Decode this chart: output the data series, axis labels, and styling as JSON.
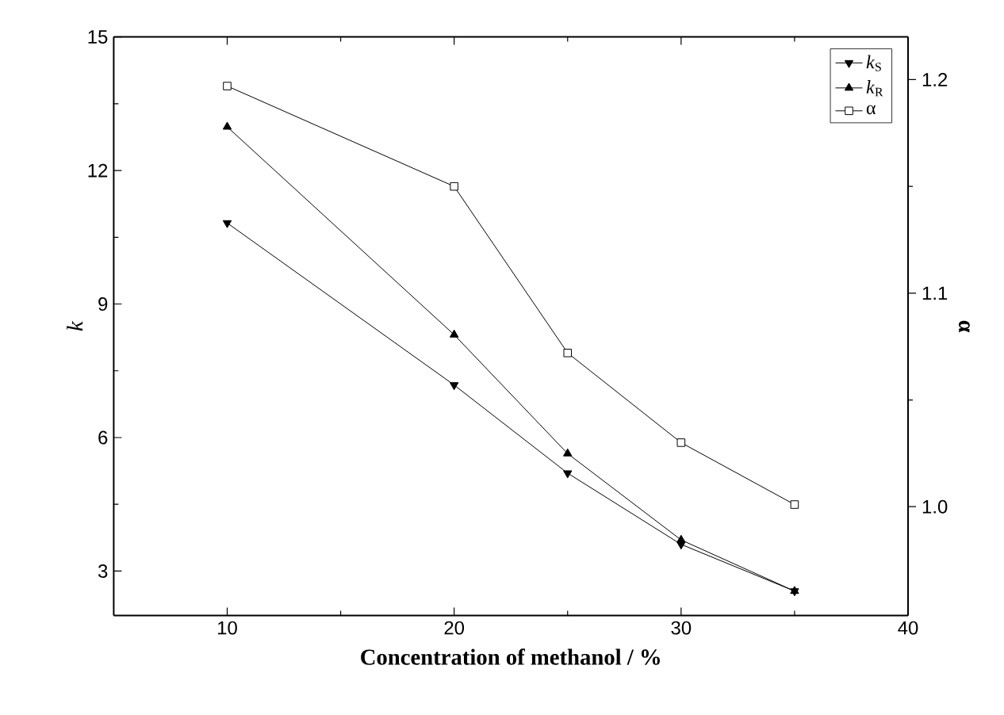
{
  "chart_data": {
    "type": "line",
    "xlabel": "Concentration of methanol / %",
    "ylabel": "k",
    "y2label": "α",
    "x": [
      10,
      20,
      25,
      30,
      35
    ],
    "series": [
      {
        "name": "*k*$_{S}$",
        "color": "#000000",
        "marker": "triangle-down",
        "values": [
          10.82,
          7.18,
          5.2,
          3.6,
          2.55
        ]
      },
      {
        "name": "*k*$_{R}$",
        "color": "#000000",
        "marker": "triangle",
        "values": [
          12.98,
          8.31,
          5.64,
          3.7,
          2.55
        ]
      },
      {
        "name": "α",
        "color": "#000000",
        "marker": "square",
        "axis": "y2",
        "values": [
          1.197,
          1.15,
          1.072,
          1.03,
          1.001
        ]
      }
    ],
    "xlim": [
      5,
      40
    ],
    "xticks": [
      10,
      20,
      30,
      40
    ],
    "ylim": [
      2,
      15
    ],
    "yticks": [
      3,
      6,
      9,
      12,
      15
    ],
    "y2lim": [
      0.949,
      1.22
    ],
    "y2ticks": [
      {
        "value": 1.0,
        "label": "1.0"
      },
      1.1,
      1.2
    ],
    "legend": "top right",
    "line_style": "solid"
  }
}
